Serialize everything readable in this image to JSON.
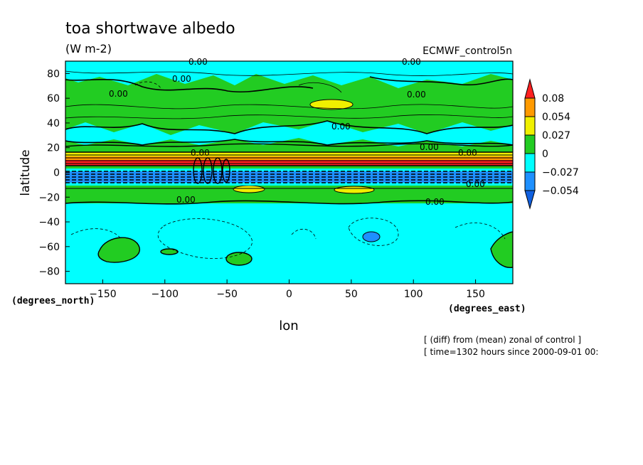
{
  "chart_data": {
    "type": "heatmap",
    "title": "toa shortwave albedo",
    "units": "(W m-2)",
    "dataset": "ECMWF_control5n",
    "xlabel": "lon",
    "ylabel": "latitude",
    "x_unit": "(degrees_east)",
    "y_unit": "(degrees_north)",
    "xlim": [
      -180,
      180
    ],
    "ylim": [
      -90,
      90
    ],
    "x_ticks": [
      "−150",
      "−100",
      "−50",
      "0",
      "50",
      "100",
      "150"
    ],
    "y_ticks": [
      "80",
      "60",
      "40",
      "20",
      "0",
      "−20",
      "−40",
      "−60",
      "−80"
    ],
    "colorbar": {
      "labels": [
        "0.08",
        "0.054",
        "0.027",
        "0",
        "−0.027",
        "−0.054"
      ],
      "colors": [
        "#ff2020",
        "#ff9a00",
        "#f0f000",
        "#22cc22",
        "#00ffff",
        "#1e90ff",
        "#1060e0"
      ]
    },
    "contour_labels": [
      "0.00"
    ],
    "notes": [
      "[ (diff) from (mean) zonal of control ]",
      "[ time=1302 hours since 2000-09-01 00:"
    ]
  }
}
